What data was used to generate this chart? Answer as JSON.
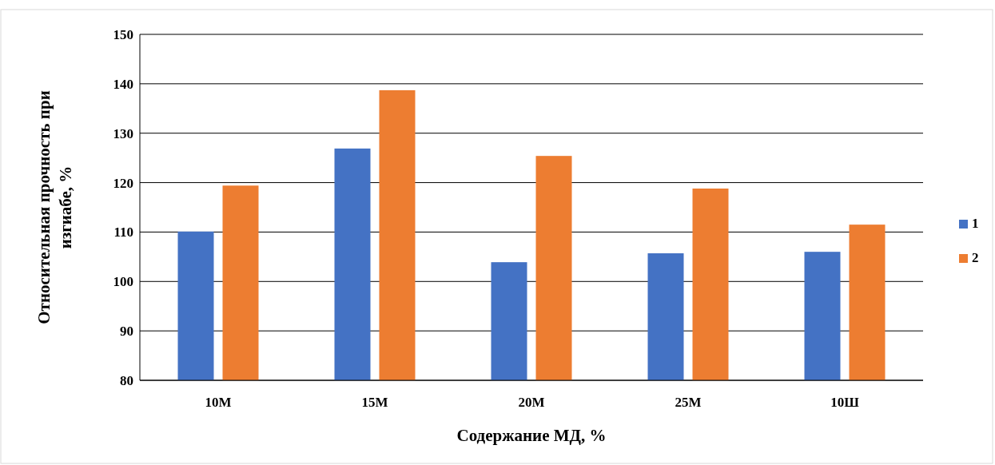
{
  "chart_data": {
    "type": "bar",
    "xlabel": "Содержание МД, %",
    "ylabel": "Относительная прочность при изгиабе, %",
    "categories": [
      "10М",
      "15М",
      "20М",
      "25М",
      "10Ш"
    ],
    "series": [
      {
        "name": "1",
        "color": "#4472c4",
        "values": [
          110.1,
          126.9,
          103.9,
          105.7,
          106.0
        ]
      },
      {
        "name": "2",
        "color": "#ed7d31",
        "values": [
          119.4,
          138.7,
          125.4,
          118.8,
          111.5
        ]
      }
    ],
    "ylim": [
      80,
      150
    ],
    "yticks": [
      80,
      90,
      100,
      110,
      120,
      130,
      140,
      150
    ],
    "grid": "y",
    "legend": "right"
  }
}
